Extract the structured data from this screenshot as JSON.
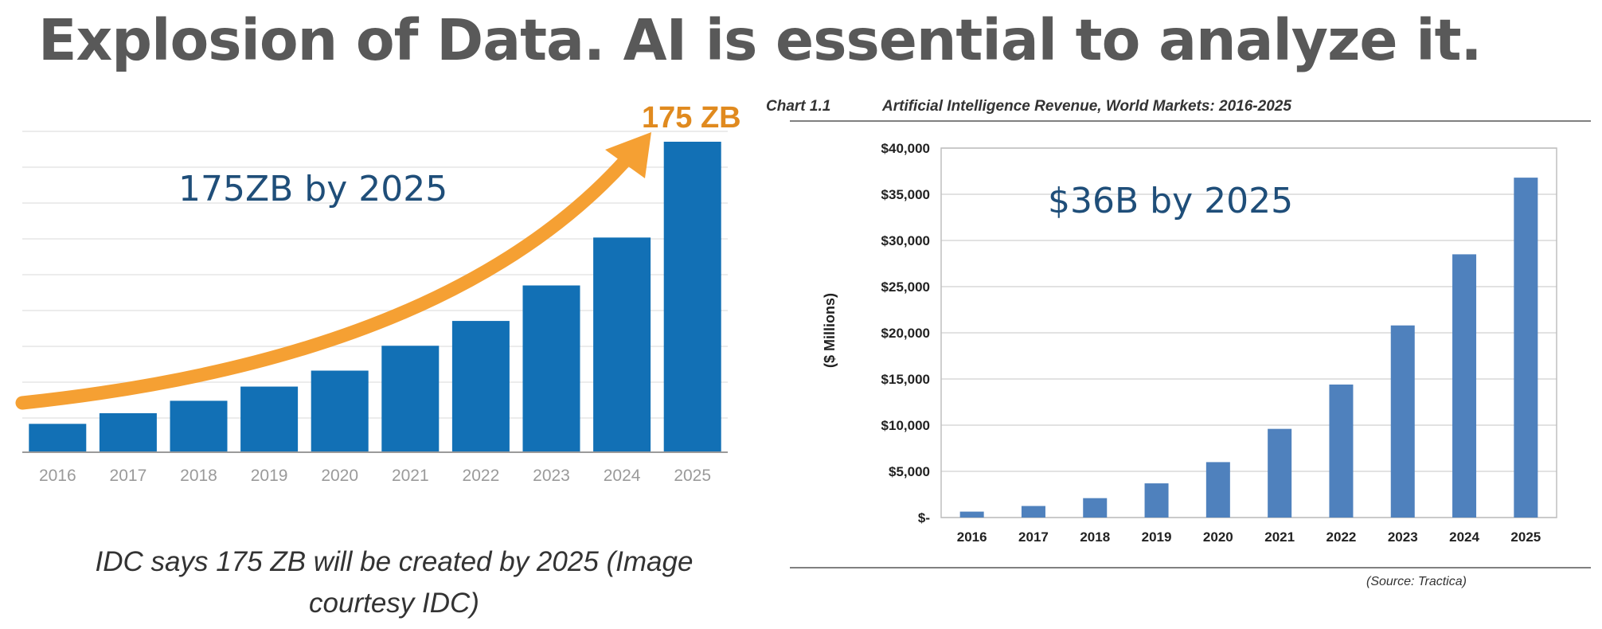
{
  "page": {
    "title": "Explosion of Data. AI is essential to analyze it."
  },
  "chart_data": [
    {
      "type": "bar",
      "title": "",
      "categories": [
        "2016",
        "2017",
        "2018",
        "2019",
        "2020",
        "2021",
        "2022",
        "2023",
        "2024",
        "2025"
      ],
      "values": [
        16,
        22,
        29,
        37,
        46,
        60,
        74,
        94,
        121,
        175
      ],
      "ylim": [
        0,
        175
      ],
      "unit": "ZB",
      "annotation_top": "175 ZB",
      "overlay_label": "175ZB by 2025",
      "caption": "IDC says 175 ZB will be created by 2025 (Image courtesy IDC)",
      "colors": {
        "bar": "#1270b5",
        "arrow": "#f5a033",
        "annotation": "#e08a1f",
        "overlay": "#1f4e79",
        "tick": "#9a9a9a"
      }
    },
    {
      "type": "bar",
      "chart_number": "Chart 1.1",
      "title": "Artificial Intelligence Revenue, World Markets: 2016-2025",
      "categories": [
        "2016",
        "2017",
        "2018",
        "2019",
        "2020",
        "2021",
        "2022",
        "2023",
        "2024",
        "2025"
      ],
      "values": [
        640,
        1250,
        2100,
        3700,
        6000,
        9600,
        14400,
        20800,
        28500,
        36800
      ],
      "ylim": [
        0,
        40000
      ],
      "yticks": [
        0,
        5000,
        10000,
        15000,
        20000,
        25000,
        30000,
        35000,
        40000
      ],
      "ytick_labels": [
        "$-",
        "$5,000",
        "$10,000",
        "$15,000",
        "$20,000",
        "$25,000",
        "$30,000",
        "$35,000",
        "$40,000"
      ],
      "ylabel": "($ Millions)",
      "overlay_label": "$36B by 2025",
      "source": "(Source: Tractica)",
      "colors": {
        "bar": "#4f81bd",
        "grid": "#d9d9d9",
        "overlay": "#1f4e79"
      }
    }
  ]
}
